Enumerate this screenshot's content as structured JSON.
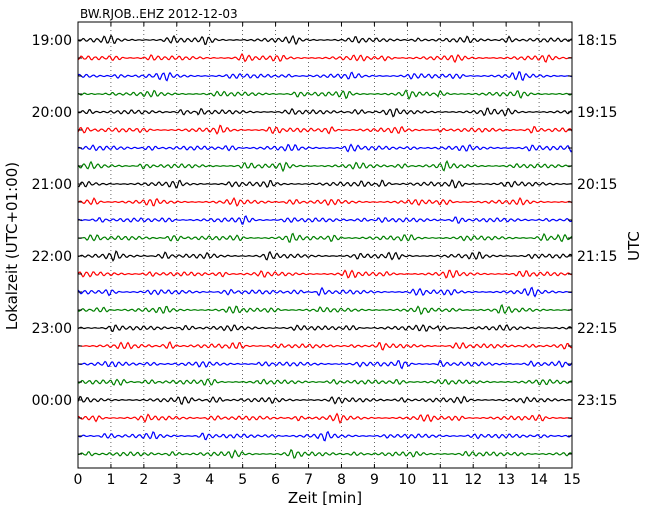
{
  "chart_data": {
    "type": "line",
    "title": "BW.RJOB..EHZ 2012-12-03",
    "xlabel": "Zeit  [min]",
    "ylabel_left": "Lokalzeit (UTC+01:00)",
    "ylabel_right": "UTC",
    "xlim": [
      0,
      15
    ],
    "x_ticks": [
      0,
      1,
      2,
      3,
      4,
      5,
      6,
      7,
      8,
      9,
      10,
      11,
      12,
      13,
      14,
      15
    ],
    "x_grid": "dotted",
    "rows": 24,
    "row_interval_min": 15,
    "left_tick_labels": [
      "19:00",
      "20:00",
      "21:00",
      "22:00",
      "23:00",
      "00:00"
    ],
    "right_tick_labels": [
      "18:15",
      "19:15",
      "20:15",
      "21:15",
      "22:15",
      "23:15"
    ],
    "label_every_rows": 4,
    "series_colors": [
      "#000000",
      "#ff0000",
      "#0000ff",
      "#008000"
    ]
  }
}
